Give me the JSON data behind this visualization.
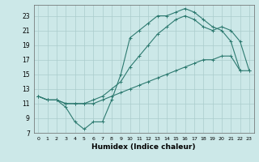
{
  "xlabel": "Humidex (Indice chaleur)",
  "bg_color": "#cce8e8",
  "grid_color": "#aacccc",
  "line_color": "#2d7a70",
  "xlim": [
    -0.5,
    23.5
  ],
  "ylim": [
    7,
    24.5
  ],
  "yticks": [
    7,
    9,
    11,
    13,
    15,
    17,
    19,
    21,
    23
  ],
  "xticks": [
    0,
    1,
    2,
    3,
    4,
    5,
    6,
    7,
    8,
    9,
    10,
    11,
    12,
    13,
    14,
    15,
    16,
    17,
    18,
    19,
    20,
    21,
    22,
    23
  ],
  "line1_x": [
    0,
    1,
    2,
    3,
    4,
    5,
    6,
    7,
    8,
    9,
    10,
    11,
    12,
    13,
    14,
    15,
    16,
    17,
    18,
    19,
    20,
    21,
    22
  ],
  "line1_y": [
    12,
    11.5,
    11.5,
    10.5,
    8.5,
    7.5,
    8.5,
    8.5,
    11.5,
    15,
    20,
    21,
    22,
    23,
    23,
    23.5,
    24,
    23.5,
    22.5,
    21.5,
    21,
    19.5,
    15.5
  ],
  "line2_x": [
    0,
    1,
    2,
    3,
    4,
    5,
    6,
    7,
    8,
    9,
    10,
    11,
    12,
    13,
    14,
    15,
    16,
    17,
    18,
    19,
    20,
    21,
    22,
    23
  ],
  "line2_y": [
    12,
    11.5,
    11.5,
    11,
    11,
    11,
    11.5,
    12,
    13,
    14,
    16,
    17.5,
    19,
    20.5,
    21.5,
    22.5,
    23,
    22.5,
    21.5,
    21,
    21.5,
    21,
    19.5,
    15.5
  ],
  "line3_x": [
    0,
    1,
    2,
    3,
    4,
    5,
    6,
    7,
    8,
    9,
    10,
    11,
    12,
    13,
    14,
    15,
    16,
    17,
    18,
    19,
    20,
    21,
    22,
    23
  ],
  "line3_y": [
    12,
    11.5,
    11.5,
    11,
    11,
    11,
    11,
    11.5,
    12,
    12.5,
    13,
    13.5,
    14,
    14.5,
    15,
    15.5,
    16,
    16.5,
    17,
    17,
    17.5,
    17.5,
    15.5,
    15.5
  ]
}
